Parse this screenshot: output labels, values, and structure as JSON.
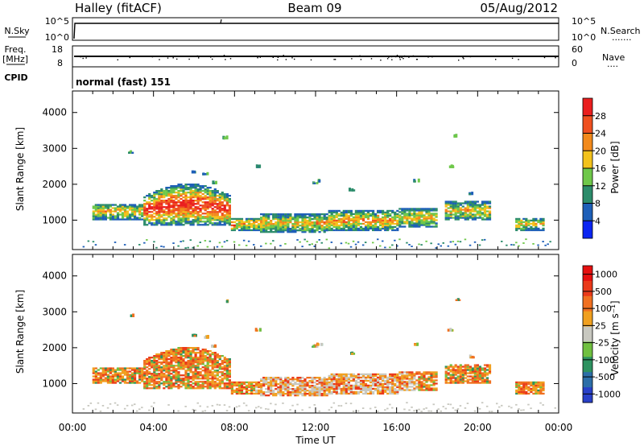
{
  "header": {
    "station": "Halley (fitACF)",
    "beam": "Beam 09",
    "date": "05/Aug/2012"
  },
  "nsky_panel": {
    "left_label": "N.Sky",
    "left_ticks": [
      "10^5",
      "10^0"
    ],
    "right_ticks": [
      "10^5",
      "10^0"
    ],
    "right_label": "N.Search"
  },
  "freq_panel": {
    "left_label_1": "Freq.",
    "left_label_2": "[MHz]",
    "left_ticks": [
      "18",
      "8"
    ],
    "right_ticks": [
      "60",
      "0"
    ],
    "right_label": "Nave"
  },
  "cpid_panel": {
    "label": "CPID",
    "mode_text": "normal (fast) 151"
  },
  "chart_data": [
    {
      "type": "heatmap",
      "name": "power",
      "ylabel": "Slant Range [km]",
      "y_ticks": [
        "1000",
        "2000",
        "3000",
        "4000"
      ],
      "ylim": [
        180,
        4600
      ],
      "xlim_hours": [
        0,
        24
      ],
      "colorbar": {
        "label": "Power [dB]",
        "ticks": [
          "4",
          "8",
          "12",
          "16",
          "20",
          "24",
          "28"
        ],
        "colors": [
          "#0b25f2",
          "#1e5fb8",
          "#2c8c6b",
          "#6fc84a",
          "#f3c21c",
          "#f28a1c",
          "#ef5020",
          "#ea1e1e"
        ]
      }
    },
    {
      "type": "heatmap",
      "name": "velocity",
      "ylabel": "Slant Range [km]",
      "y_ticks": [
        "1000",
        "2000",
        "3000",
        "4000"
      ],
      "ylim": [
        180,
        4600
      ],
      "xlim_hours": [
        0,
        24
      ],
      "colorbar": {
        "label": "Velocity [m s⁻¹]",
        "ticks": [
          "1000",
          "500",
          "100",
          "25",
          "-25",
          "-100",
          "-500",
          "-1000"
        ],
        "colors": [
          "#2840c8",
          "#2c6ea8",
          "#2d9260",
          "#70c040",
          "#c8c8c0",
          "#f0a020",
          "#f07020",
          "#ea3a1a",
          "#e61010"
        ]
      }
    }
  ],
  "x_axis": {
    "ticks": [
      "00:00",
      "04:00",
      "08:00",
      "12:00",
      "16:00",
      "20:00",
      "00:00"
    ],
    "label": "Time UT"
  }
}
